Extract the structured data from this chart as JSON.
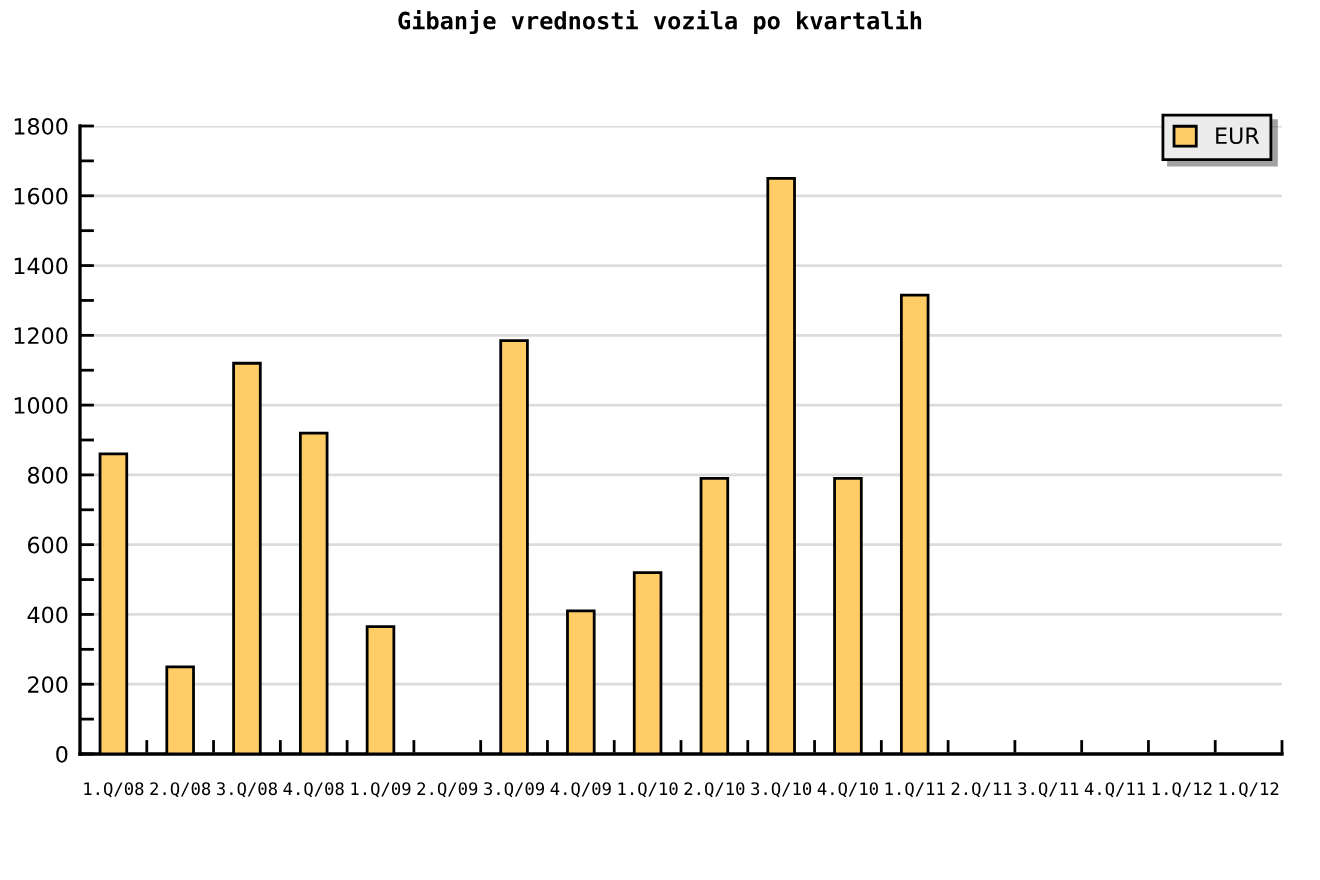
{
  "chart_data": {
    "type": "bar",
    "title": "Gibanje vrednosti vozila po kvartalih",
    "categories": [
      "1.Q/08",
      "2.Q/08",
      "3.Q/08",
      "4.Q/08",
      "1.Q/09",
      "2.Q/09",
      "3.Q/09",
      "4.Q/09",
      "1.Q/10",
      "2.Q/10",
      "3.Q/10",
      "4.Q/10",
      "1.Q/11",
      "2.Q/11",
      "3.Q/11",
      "4.Q/11",
      "1.Q/12",
      "1.Q/12"
    ],
    "series": [
      {
        "name": "EUR",
        "color": "#ffcc66",
        "values": [
          860,
          250,
          1120,
          920,
          365,
          null,
          1185,
          410,
          520,
          790,
          1650,
          790,
          1315,
          null,
          null,
          null,
          null,
          null
        ]
      }
    ],
    "ylim": [
      0,
      1800
    ],
    "yticks": [
      0,
      {
        "value": 100,
        "label": null
      },
      200,
      {
        "value": 300,
        "label": null
      },
      400,
      {
        "value": 500,
        "label": null
      },
      600,
      {
        "value": 700,
        "label": null
      },
      800,
      {
        "value": 900,
        "label": null
      },
      1000,
      {
        "value": 1100,
        "label": null
      },
      1200,
      {
        "value": 1300,
        "label": null
      },
      1400,
      {
        "value": 1500,
        "label": null
      },
      1600,
      {
        "value": 1700,
        "label": null
      },
      1800
    ],
    "grid": "y",
    "legend": "top right"
  }
}
